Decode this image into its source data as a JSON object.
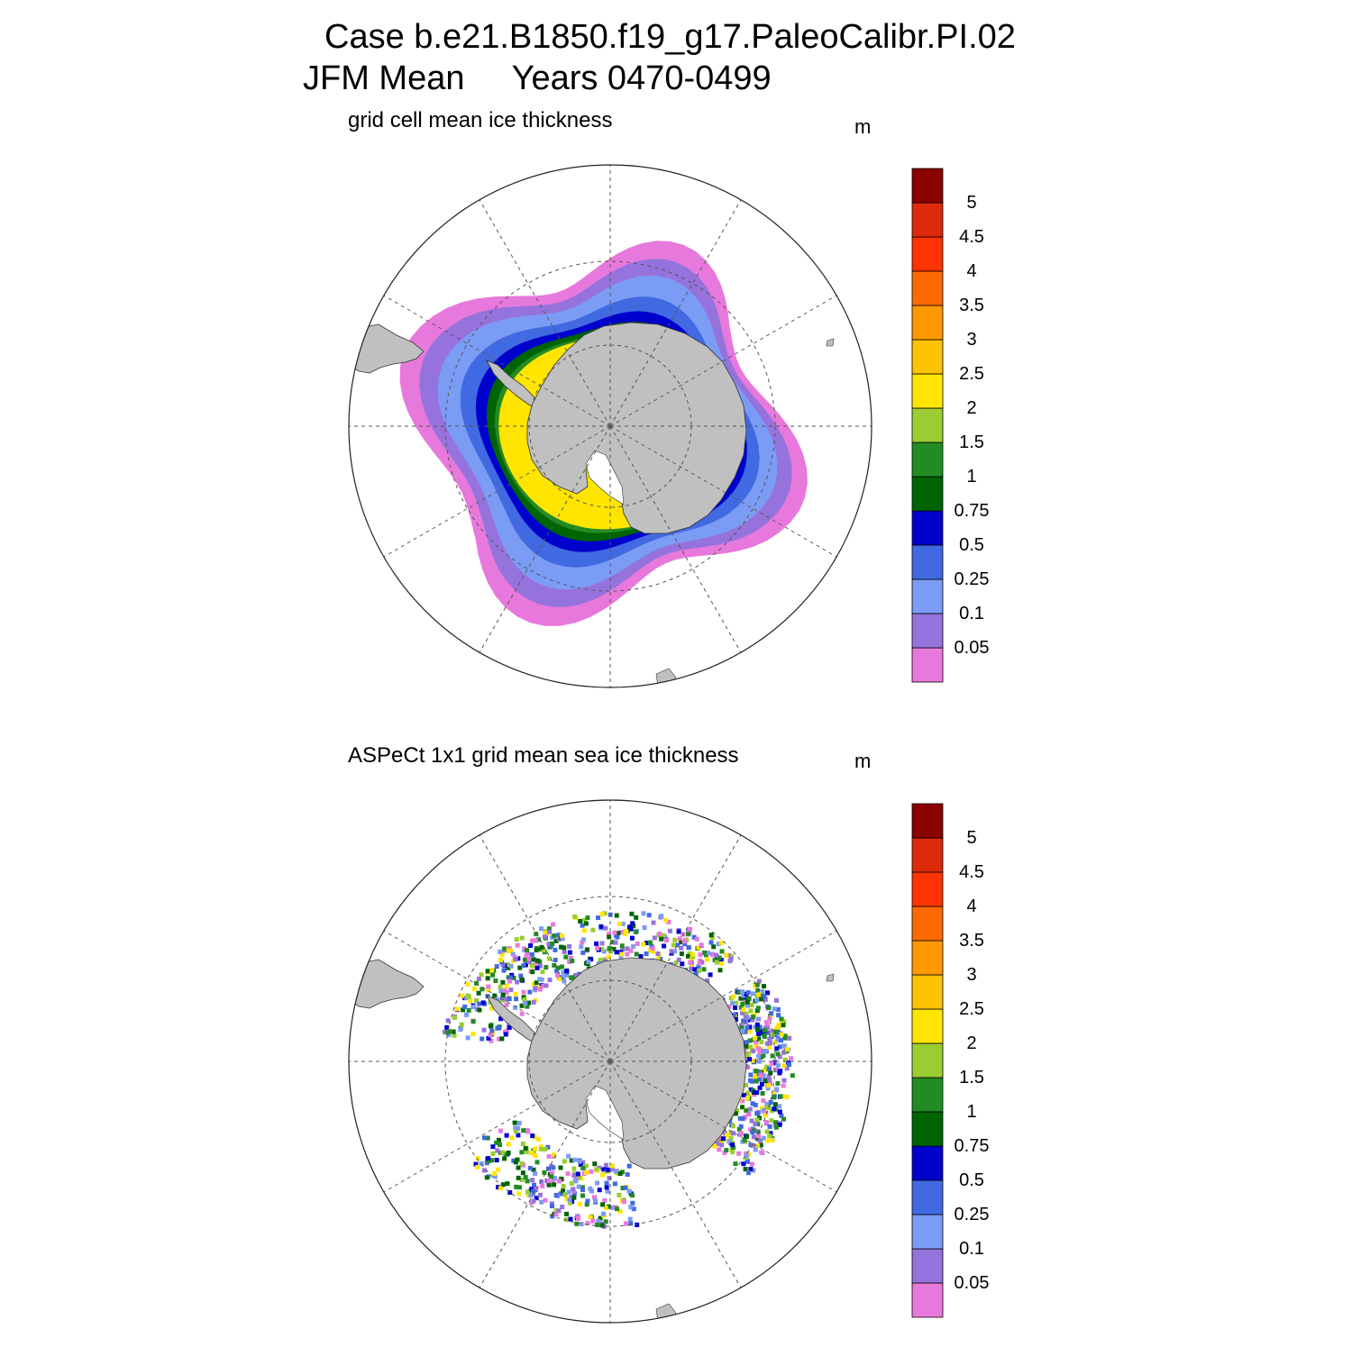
{
  "header": {
    "title_line1": "Case b.e21.B1850.f19_g17.PaleoCalibr.PI.02",
    "title_line2": "JFM Mean     Years 0470-0499"
  },
  "panels": [
    {
      "subtitle": "grid cell mean ice thickness",
      "units": "m"
    },
    {
      "subtitle": "ASPeCt 1x1 grid mean sea ice thickness",
      "units": "m"
    }
  ],
  "colorbar": {
    "labels": [
      "0.05",
      "0.1",
      "0.25",
      "0.5",
      "0.75",
      "1",
      "1.5",
      "2",
      "2.5",
      "3",
      "3.5",
      "4",
      "4.5",
      "5"
    ],
    "colors": [
      "#e879dc",
      "#9673dc",
      "#7b9cf5",
      "#4169e1",
      "#0000cd",
      "#006400",
      "#228b22",
      "#9acd32",
      "#ffe500",
      "#ffc200",
      "#ff9900",
      "#ff6a00",
      "#ff3300",
      "#dc2a0a",
      "#8b0000"
    ]
  },
  "map_style": {
    "land_color": "#c0c0c0",
    "ocean_color": "#ffffff",
    "grid_color": "#444444",
    "projection": "south polar stereographic"
  }
}
